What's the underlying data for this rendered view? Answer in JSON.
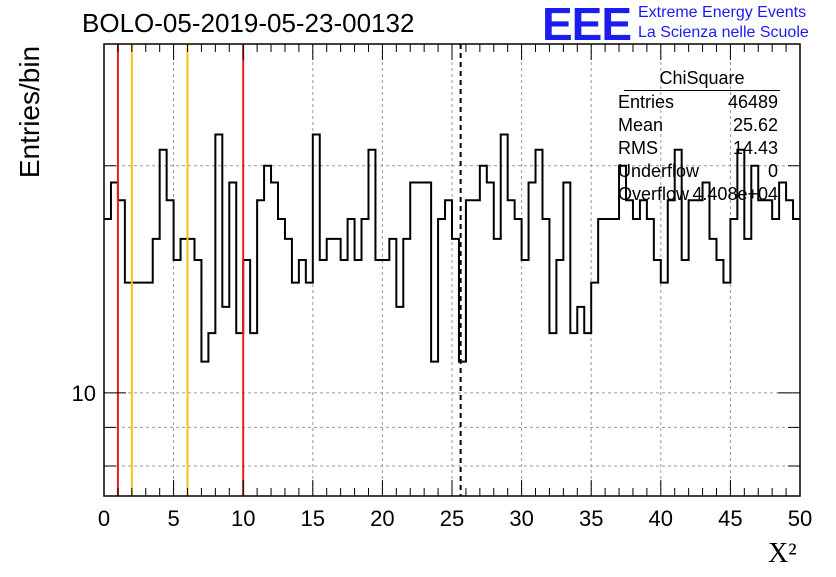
{
  "title": "BOLO-05-2019-05-23-00132",
  "logo": {
    "mark": "EEE",
    "line1": "Extreme Energy Events",
    "line2": "La Scienza nelle Scuole",
    "color": "#1c1cf0"
  },
  "stats_box": {
    "title": "ChiSquare",
    "rows": [
      {
        "key": "Entries",
        "value": "46489"
      },
      {
        "key": "Mean",
        "value": "25.62"
      },
      {
        "key": "RMS",
        "value": "14.43"
      },
      {
        "key": "Underflow",
        "value": "0"
      },
      {
        "key": "Overflow",
        "value": "4.408e+04"
      }
    ]
  },
  "chart_data": {
    "type": "histogram",
    "xlabel": "X²",
    "ylabel": "Entries/bin",
    "xlim": [
      0,
      50
    ],
    "ylog": true,
    "ylim": [
      7.3,
      29
    ],
    "x_ticks": [
      0,
      5,
      10,
      15,
      20,
      25,
      30,
      35,
      40,
      45,
      50
    ],
    "y_tick_labels": [
      {
        "value": 10,
        "label": "10"
      }
    ],
    "grid": true,
    "bin_width": 0.5,
    "bin_values": [
      17,
      19,
      18,
      14,
      14,
      14,
      14,
      16,
      21,
      18,
      15,
      16,
      16,
      15,
      11,
      12,
      22,
      13,
      19,
      12,
      15,
      12,
      18,
      20,
      19,
      17,
      16,
      14,
      15,
      14,
      22,
      15,
      16,
      16,
      15,
      17,
      15,
      17,
      21,
      15,
      15,
      16,
      13,
      16,
      19,
      19,
      19,
      11,
      17,
      18,
      16,
      11,
      18,
      18,
      20,
      19,
      16,
      22,
      18,
      17,
      15,
      19,
      21,
      17,
      12,
      15,
      19,
      12,
      13,
      12,
      14,
      17,
      17,
      17,
      20,
      18,
      17,
      18,
      17,
      15,
      14,
      18,
      21,
      15,
      18,
      18,
      19,
      16,
      15,
      14,
      17,
      21,
      16,
      20,
      18,
      18,
      17,
      19,
      18,
      17
    ],
    "vertical_lines": [
      {
        "x": 1,
        "color": "#e01e1e",
        "style": "solid"
      },
      {
        "x": 2,
        "color": "#f2c418",
        "style": "solid"
      },
      {
        "x": 6,
        "color": "#f2c418",
        "style": "solid"
      },
      {
        "x": 10,
        "color": "#e01e1e",
        "style": "solid"
      },
      {
        "x": 25.62,
        "color": "#000000",
        "style": "dashed"
      }
    ]
  }
}
